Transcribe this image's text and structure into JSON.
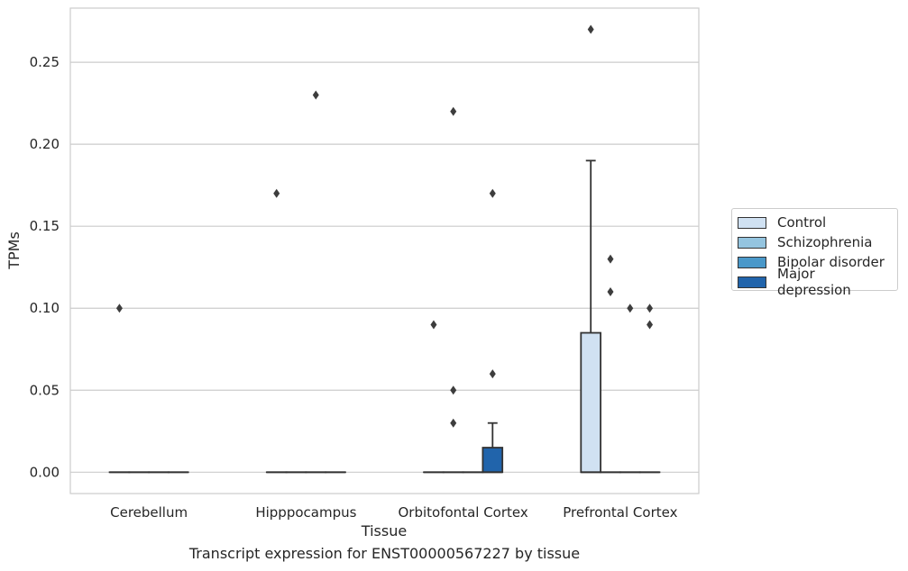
{
  "caption": "Transcript expression for ENST00000567227 by tissue",
  "chart_data": {
    "type": "box",
    "xlabel": "Tissue",
    "ylabel": "TPMs",
    "ylim": [
      -0.013,
      0.283
    ],
    "yticks": [
      0.0,
      0.05,
      0.1,
      0.15,
      0.2,
      0.25
    ],
    "ytick_labels": [
      "0.00",
      "0.05",
      "0.10",
      "0.15",
      "0.20",
      "0.25"
    ],
    "grid": true,
    "legend_position": "right",
    "categories": [
      "Cerebellum",
      "Hipppocampus",
      "Orbitofontal Cortex",
      "Prefrontal Cortex"
    ],
    "series": [
      {
        "name": "Control",
        "color": "#d0e1f2",
        "boxes": [
          {
            "q1": 0,
            "median": 0,
            "q3": 0,
            "whisker_low": 0,
            "whisker_high": 0,
            "outliers": [
              0.1
            ]
          },
          {
            "q1": 0,
            "median": 0,
            "q3": 0,
            "whisker_low": 0,
            "whisker_high": 0,
            "outliers": [
              0.17
            ]
          },
          {
            "q1": 0,
            "median": 0,
            "q3": 0,
            "whisker_low": 0,
            "whisker_high": 0,
            "outliers": [
              0.09
            ]
          },
          {
            "q1": 0,
            "median": 0,
            "q3": 0.085,
            "whisker_low": 0,
            "whisker_high": 0.19,
            "outliers": [
              0.27
            ]
          }
        ]
      },
      {
        "name": "Schizophrenia",
        "color": "#94c4df",
        "boxes": [
          {
            "q1": 0,
            "median": 0,
            "q3": 0,
            "whisker_low": 0,
            "whisker_high": 0,
            "outliers": []
          },
          {
            "q1": 0,
            "median": 0,
            "q3": 0,
            "whisker_low": 0,
            "whisker_high": 0,
            "outliers": []
          },
          {
            "q1": 0,
            "median": 0,
            "q3": 0,
            "whisker_low": 0,
            "whisker_high": 0,
            "outliers": [
              0.22,
              0.05,
              0.03
            ]
          },
          {
            "q1": 0,
            "median": 0,
            "q3": 0,
            "whisker_low": 0,
            "whisker_high": 0,
            "outliers": [
              0.13,
              0.11
            ]
          }
        ]
      },
      {
        "name": "Bipolar disorder",
        "color": "#4a98c9",
        "boxes": [
          {
            "q1": 0,
            "median": 0,
            "q3": 0,
            "whisker_low": 0,
            "whisker_high": 0,
            "outliers": []
          },
          {
            "q1": 0,
            "median": 0,
            "q3": 0,
            "whisker_low": 0,
            "whisker_high": 0,
            "outliers": [
              0.23
            ]
          },
          {
            "q1": 0,
            "median": 0,
            "q3": 0,
            "whisker_low": 0,
            "whisker_high": 0,
            "outliers": []
          },
          {
            "q1": 0,
            "median": 0,
            "q3": 0,
            "whisker_low": 0,
            "whisker_high": 0,
            "outliers": [
              0.1
            ]
          }
        ]
      },
      {
        "name": "Major depression",
        "color": "#2164ab",
        "boxes": [
          {
            "q1": 0,
            "median": 0,
            "q3": 0,
            "whisker_low": 0,
            "whisker_high": 0,
            "outliers": []
          },
          {
            "q1": 0,
            "median": 0,
            "q3": 0,
            "whisker_low": 0,
            "whisker_high": 0,
            "outliers": []
          },
          {
            "q1": 0,
            "median": 0,
            "q3": 0.015,
            "whisker_low": 0,
            "whisker_high": 0.03,
            "outliers": [
              0.17,
              0.06
            ]
          },
          {
            "q1": 0,
            "median": 0,
            "q3": 0,
            "whisker_low": 0,
            "whisker_high": 0,
            "outliers": [
              0.1,
              0.09
            ]
          }
        ]
      }
    ]
  }
}
